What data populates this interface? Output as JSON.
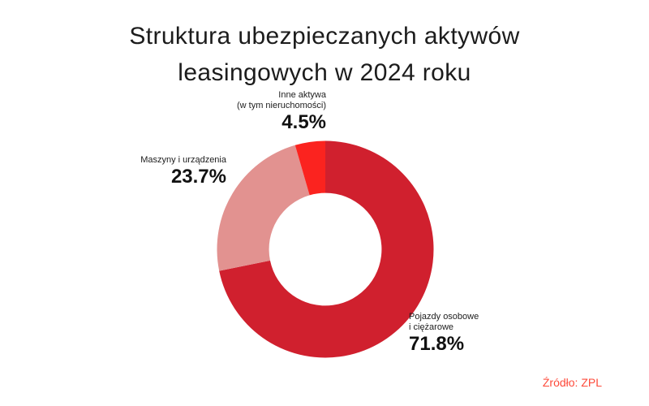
{
  "title": {
    "line1": "Struktura ubezpieczanych aktywów",
    "line2": "leasingowych w 2024 roku"
  },
  "source": {
    "label": "Źródło: ZPL"
  },
  "colors": {
    "slice_vehicles": "#d0202e",
    "slice_machines": "#e29290",
    "slice_other": "#fb231f",
    "source_text": "#fe4a3a",
    "title_text": "#1c1c1c",
    "background": "#ffffff"
  },
  "chart_data": {
    "type": "pie",
    "subtype": "donut",
    "title": "Struktura ubezpieczanych aktywów leasingowych w 2024 roku",
    "categories": [
      "Pojazdy osobowe i ciężarowe",
      "Maszyny i urządzenia",
      "Inne aktywa (w tym nieruchomości)"
    ],
    "values": [
      71.8,
      23.7,
      4.5
    ],
    "unit": "%",
    "colors": [
      "#d0202e",
      "#e29290",
      "#fb231f"
    ],
    "start_angle_deg": 0,
    "direction": "clockwise",
    "inner_radius_ratio": 0.52,
    "legend": "none",
    "labels": [
      {
        "lines": [
          "Pojazdy osobowe",
          "i ciężarowe"
        ],
        "value_label": "71.8%"
      },
      {
        "lines": [
          "Maszyny i urządzenia"
        ],
        "value_label": "23.7%"
      },
      {
        "lines": [
          "Inne aktywa",
          "(w tym nieruchomości)"
        ],
        "value_label": "4.5%"
      }
    ]
  }
}
